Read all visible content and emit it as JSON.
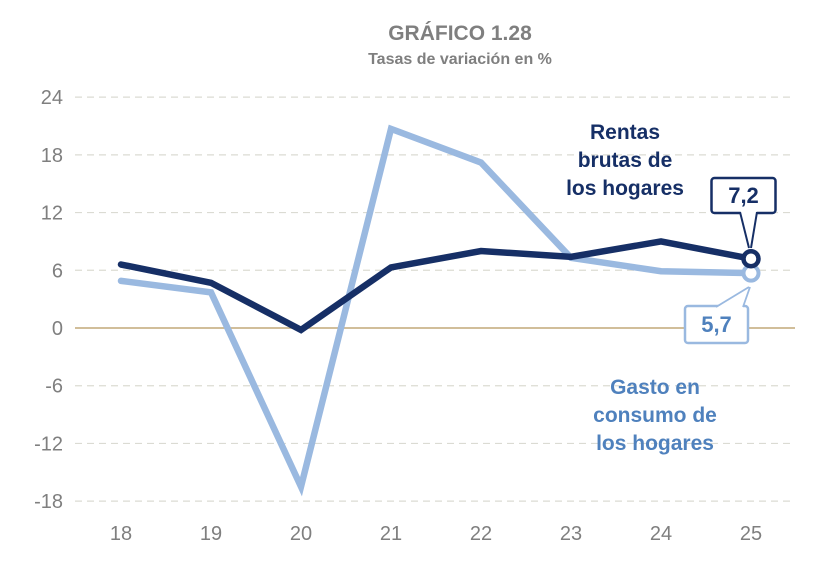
{
  "header": {
    "title": "GRÁFICO 1.28",
    "subtitle": "Tasas de variación en %"
  },
  "colors": {
    "rentas_line": "#162F66",
    "gasto_line": "#9AB9E0",
    "blue_text": "#4F81BD",
    "gray_text": "#7F7F7F",
    "gridline": "#DBDBD3",
    "zero_line": "#C2A878",
    "background": "#FFFFFF"
  },
  "chart_data": {
    "type": "line",
    "title": "GRÁFICO 1.28",
    "subtitle": "Tasas de variación en %",
    "x": [
      "18",
      "19",
      "20",
      "21",
      "22",
      "23",
      "24",
      "25"
    ],
    "series": [
      {
        "name": "Rentas brutas de los hogares",
        "values": [
          6.6,
          4.7,
          -0.2,
          6.3,
          8.0,
          7.4,
          9.0,
          7.2
        ],
        "color": "#162F66",
        "end_marker": "open-circle"
      },
      {
        "name": "Gasto en consumo de los hogares",
        "values": [
          4.9,
          3.7,
          -16.5,
          20.7,
          17.2,
          7.3,
          5.9,
          5.7
        ],
        "color": "#9AB9E0",
        "end_marker": "open-circle"
      }
    ],
    "ylim": [
      -18,
      24
    ],
    "yticks": [
      24,
      18,
      12,
      6,
      0,
      -6,
      -12,
      -18
    ],
    "grid": "horizontal dashed gridlines, solid tan zero line",
    "legend_position": "inline text annotations near lines"
  },
  "annotations": {
    "rentas_label_lines": [
      "Rentas",
      "brutas de",
      "los hogares"
    ],
    "gasto_label_lines": [
      "Gasto en",
      "consumo de",
      "los hogares"
    ],
    "rentas_callout": "7,2",
    "gasto_callout": "5,7"
  }
}
